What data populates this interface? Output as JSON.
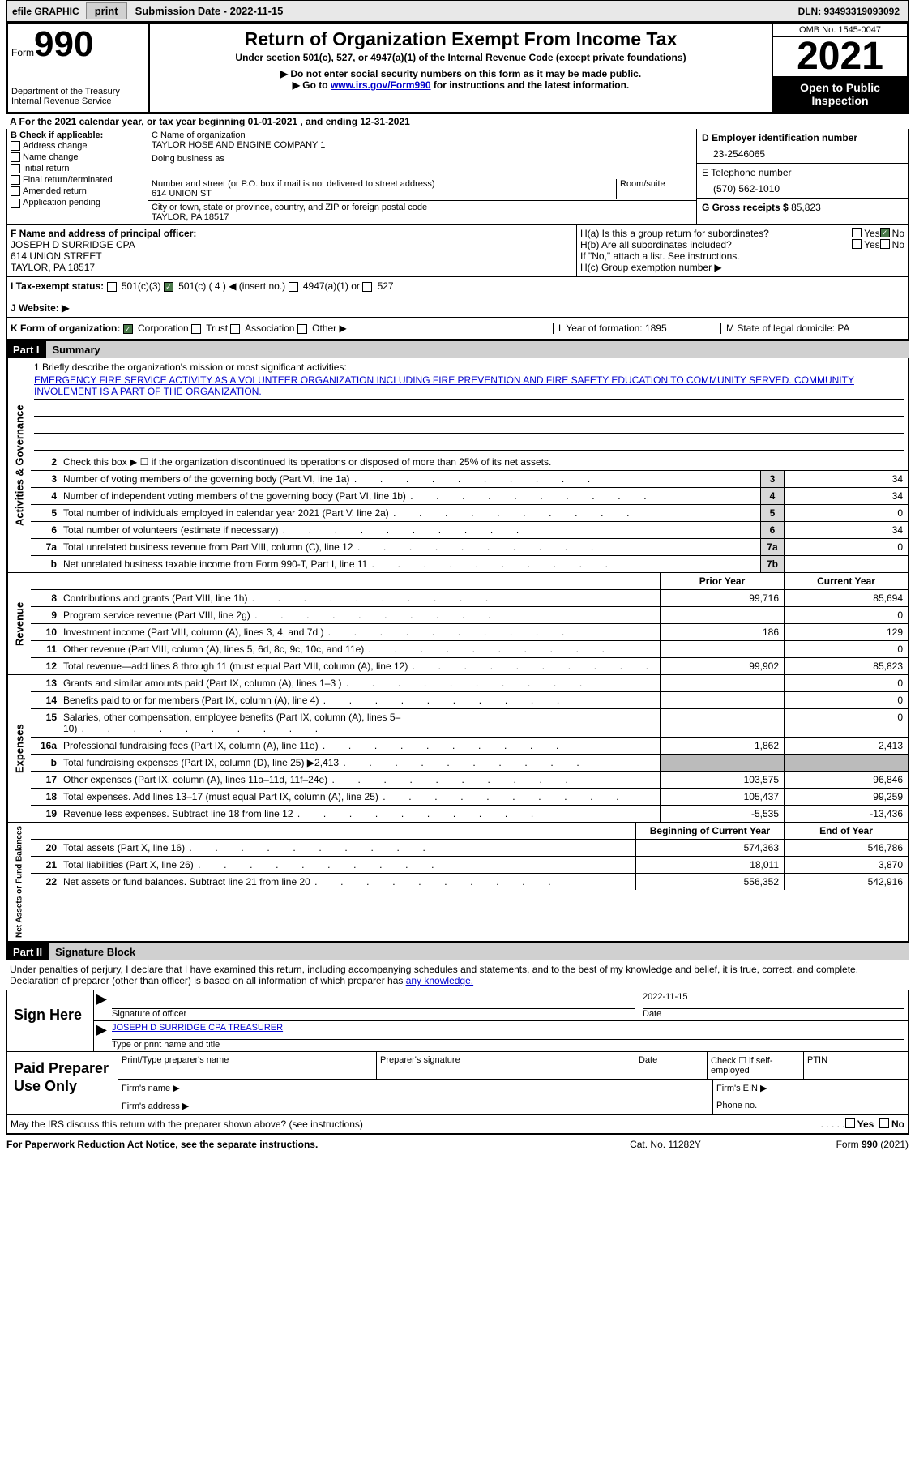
{
  "top": {
    "efile": "efile GRAPHIC",
    "print": "print",
    "sub_date": "Submission Date - 2022-11-15",
    "dln": "DLN: 93493319093092"
  },
  "header": {
    "form_word": "Form",
    "form_num": "990",
    "dept": "Department of the Treasury",
    "irs": "Internal Revenue Service",
    "title": "Return of Organization Exempt From Income Tax",
    "subtitle": "Under section 501(c), 527, or 4947(a)(1) of the Internal Revenue Code (except private foundations)",
    "note1": "▶ Do not enter social security numbers on this form as it may be made public.",
    "note2_pre": "▶ Go to ",
    "note2_link": "www.irs.gov/Form990",
    "note2_post": " for instructions and the latest information.",
    "omb": "OMB No. 1545-0047",
    "year": "2021",
    "open": "Open to Public Inspection"
  },
  "line_a": "A For the 2021 calendar year, or tax year beginning 01-01-2021   , and ending 12-31-2021",
  "b": {
    "title": "B Check if applicable:",
    "opts": [
      "Address change",
      "Name change",
      "Initial return",
      "Final return/terminated",
      "Amended return",
      "Application pending"
    ]
  },
  "c": {
    "name_label": "C Name of organization",
    "name": "TAYLOR HOSE AND ENGINE COMPANY 1",
    "dba": "Doing business as",
    "street_label": "Number and street (or P.O. box if mail is not delivered to street address)",
    "room": "Room/suite",
    "street": "614 UNION ST",
    "city_label": "City or town, state or province, country, and ZIP or foreign postal code",
    "city": "TAYLOR, PA   18517"
  },
  "d": {
    "ein_label": "D Employer identification number",
    "ein": "23-2546065",
    "tel_label": "E Telephone number",
    "tel": "(570) 562-1010",
    "gross_label": "G Gross receipts $",
    "gross": "85,823"
  },
  "f": {
    "label": "F  Name and address of principal officer:",
    "name": "JOSEPH D SURRIDGE CPA",
    "addr1": "614 UNION STREET",
    "addr2": "TAYLOR, PA   18517"
  },
  "h": {
    "a": "H(a)  Is this a group return for subordinates?",
    "b": "H(b)  Are all subordinates included?",
    "note": "If \"No,\" attach a list. See instructions.",
    "c": "H(c)  Group exemption number ▶",
    "yes": "Yes",
    "no": "No"
  },
  "i": {
    "label": "I   Tax-exempt status:",
    "opts": [
      "501(c)(3)",
      "501(c) ( 4 ) ◀ (insert no.)",
      "4947(a)(1) or",
      "527"
    ]
  },
  "j": "J   Website: ▶",
  "k": {
    "label": "K Form of organization:",
    "opts": [
      "Corporation",
      "Trust",
      "Association",
      "Other ▶"
    ],
    "l": "L Year of formation: 1895",
    "m": "M State of legal domicile: PA"
  },
  "parts": {
    "p1": "Part I",
    "p1_title": "Summary",
    "p2": "Part II",
    "p2_title": "Signature Block"
  },
  "briefly": {
    "label": "1   Briefly describe the organization's mission or most significant activities:",
    "text": "EMERGENCY FIRE SERVICE ACTIVITY AS A VOLUNTEER ORGANIZATION INCLUDING FIRE PREVENTION AND FIRE SAFETY EDUCATION TO COMMUNITY SERVED. COMMUNITY INVOLEMENT IS A PART OF THE ORGANIZATION."
  },
  "summary": {
    "line2": "Check this box ▶ ☐  if the organization discontinued its operations or disposed of more than 25% of its net assets.",
    "rows1": [
      {
        "n": "3",
        "d": "Number of voting members of the governing body (Part VI, line 1a)",
        "b": "3",
        "v": "34"
      },
      {
        "n": "4",
        "d": "Number of independent voting members of the governing body (Part VI, line 1b)",
        "b": "4",
        "v": "34"
      },
      {
        "n": "5",
        "d": "Total number of individuals employed in calendar year 2021 (Part V, line 2a)",
        "b": "5",
        "v": "0"
      },
      {
        "n": "6",
        "d": "Total number of volunteers (estimate if necessary)",
        "b": "6",
        "v": "34"
      },
      {
        "n": "7a",
        "d": "Total unrelated business revenue from Part VIII, column (C), line 12",
        "b": "7a",
        "v": "0"
      },
      {
        "n": "b",
        "d": "Net unrelated business taxable income from Form 990-T, Part I, line 11",
        "b": "7b",
        "v": ""
      }
    ],
    "head_prior": "Prior Year",
    "head_curr": "Current Year",
    "revenue": [
      {
        "n": "8",
        "d": "Contributions and grants (Part VIII, line 1h)",
        "p": "99,716",
        "c": "85,694"
      },
      {
        "n": "9",
        "d": "Program service revenue (Part VIII, line 2g)",
        "p": "",
        "c": "0"
      },
      {
        "n": "10",
        "d": "Investment income (Part VIII, column (A), lines 3, 4, and 7d )",
        "p": "186",
        "c": "129"
      },
      {
        "n": "11",
        "d": "Other revenue (Part VIII, column (A), lines 5, 6d, 8c, 9c, 10c, and 11e)",
        "p": "",
        "c": "0"
      },
      {
        "n": "12",
        "d": "Total revenue—add lines 8 through 11 (must equal Part VIII, column (A), line 12)",
        "p": "99,902",
        "c": "85,823"
      }
    ],
    "expenses": [
      {
        "n": "13",
        "d": "Grants and similar amounts paid (Part IX, column (A), lines 1–3 )",
        "p": "",
        "c": "0"
      },
      {
        "n": "14",
        "d": "Benefits paid to or for members (Part IX, column (A), line 4)",
        "p": "",
        "c": "0"
      },
      {
        "n": "15",
        "d": "Salaries, other compensation, employee benefits (Part IX, column (A), lines 5–10)",
        "p": "",
        "c": "0"
      },
      {
        "n": "16a",
        "d": "Professional fundraising fees (Part IX, column (A), line 11e)",
        "p": "1,862",
        "c": "2,413"
      },
      {
        "n": "b",
        "d": "Total fundraising expenses (Part IX, column (D), line 25) ▶2,413",
        "p": "SHADED",
        "c": "SHADED"
      },
      {
        "n": "17",
        "d": "Other expenses (Part IX, column (A), lines 11a–11d, 11f–24e)",
        "p": "103,575",
        "c": "96,846"
      },
      {
        "n": "18",
        "d": "Total expenses. Add lines 13–17 (must equal Part IX, column (A), line 25)",
        "p": "105,437",
        "c": "99,259"
      },
      {
        "n": "19",
        "d": "Revenue less expenses. Subtract line 18 from line 12",
        "p": "-5,535",
        "c": "-13,436"
      }
    ],
    "head_beg": "Beginning of Current Year",
    "head_end": "End of Year",
    "net": [
      {
        "n": "20",
        "d": "Total assets (Part X, line 16)",
        "p": "574,363",
        "c": "546,786"
      },
      {
        "n": "21",
        "d": "Total liabilities (Part X, line 26)",
        "p": "18,011",
        "c": "3,870"
      },
      {
        "n": "22",
        "d": "Net assets or fund balances. Subtract line 21 from line 20",
        "p": "556,352",
        "c": "542,916"
      }
    ]
  },
  "vtabs": {
    "gov": "Activities & Governance",
    "rev": "Revenue",
    "exp": "Expenses",
    "net": "Net Assets or Fund Balances"
  },
  "sig": {
    "text_pre": "Under penalties of perjury, I declare that I have examined this return, including accompanying schedules and statements, and to the best of my knowledge and belief, it is true, correct, and complete. Declaration of preparer (other than officer) is based on all information of which preparer has ",
    "text_link": "any knowledge.",
    "sign_here": "Sign Here",
    "sig_officer": "Signature of officer",
    "date": "Date",
    "date_val": "2022-11-15",
    "name_title_val": "JOSEPH D SURRIDGE CPA  TREASURER",
    "name_title": "Type or print name and title"
  },
  "paid": {
    "label": "Paid Preparer Use Only",
    "h1": "Print/Type preparer's name",
    "h2": "Preparer's signature",
    "h3": "Date",
    "h4": "Check ☐ if self-employed",
    "h5": "PTIN",
    "firm_name": "Firm's name    ▶",
    "firm_ein": "Firm's EIN ▶",
    "firm_addr": "Firm's address ▶",
    "phone": "Phone no."
  },
  "footer": {
    "discuss": "May the IRS discuss this return with the preparer shown above? (see instructions)",
    "yes": "Yes",
    "no": "No",
    "pra": "For Paperwork Reduction Act Notice, see the separate instructions.",
    "cat": "Cat. No. 11282Y",
    "form": "Form 990 (2021)"
  }
}
